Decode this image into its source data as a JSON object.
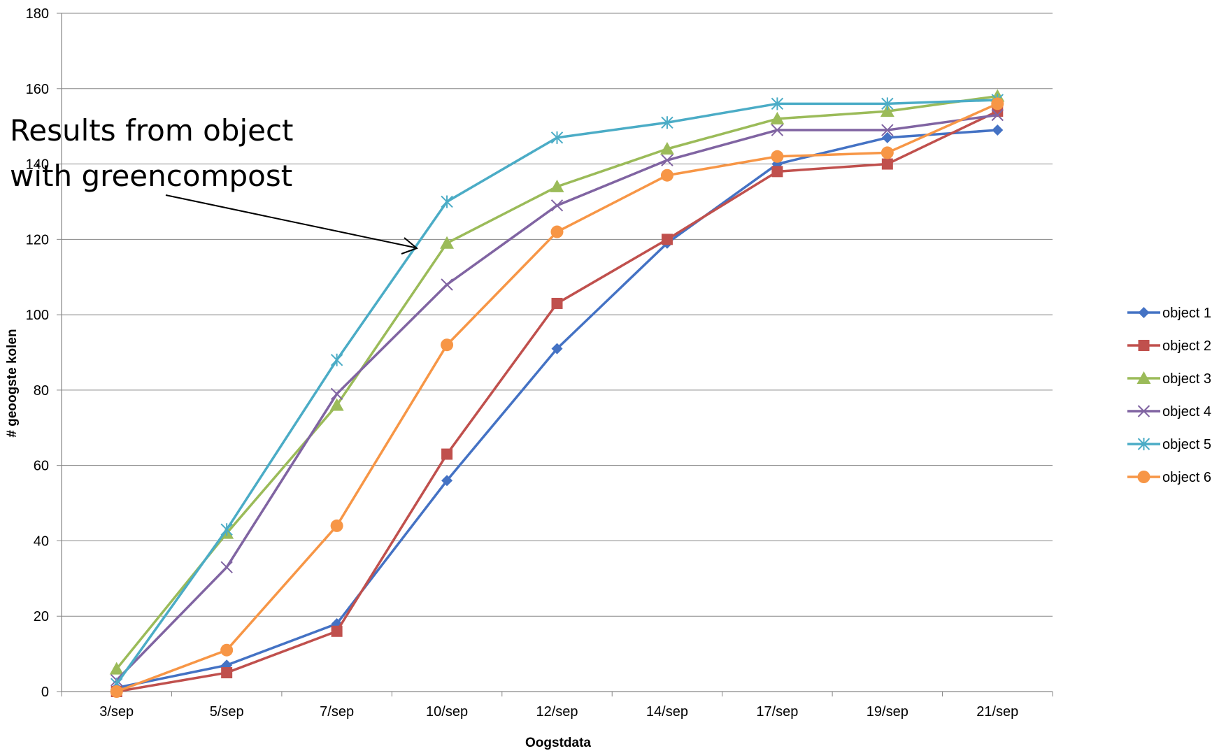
{
  "chart_data": {
    "type": "line",
    "xlabel": "Oogstdata",
    "ylabel": "# geoogste kolen",
    "categories": [
      "3/sep",
      "5/sep",
      "7/sep",
      "10/sep",
      "12/sep",
      "14/sep",
      "17/sep",
      "19/sep",
      "21/sep"
    ],
    "ylim": [
      0,
      180
    ],
    "yticks": [
      0,
      20,
      40,
      60,
      80,
      100,
      120,
      140,
      160,
      180
    ],
    "grid": true,
    "legend": "right",
    "series": [
      {
        "name": "object 1",
        "color": "#4472C4",
        "marker": "diamond",
        "values": [
          1,
          7,
          18,
          56,
          91,
          119,
          140,
          147,
          149
        ]
      },
      {
        "name": "object 2",
        "color": "#C0504D",
        "marker": "square",
        "values": [
          0,
          5,
          16,
          63,
          103,
          120,
          138,
          140,
          154
        ]
      },
      {
        "name": "object 3",
        "color": "#9BBB59",
        "marker": "triangle",
        "values": [
          6,
          42,
          76,
          119,
          134,
          144,
          152,
          154,
          158
        ]
      },
      {
        "name": "object 4",
        "color": "#8064A2",
        "marker": "x",
        "values": [
          3,
          33,
          79,
          108,
          129,
          141,
          149,
          149,
          153
        ]
      },
      {
        "name": "object 5",
        "color": "#4BACC6",
        "marker": "star",
        "values": [
          2,
          43,
          88,
          130,
          147,
          151,
          156,
          156,
          157
        ]
      },
      {
        "name": "object 6",
        "color": "#F79646",
        "marker": "circle",
        "values": [
          0,
          11,
          44,
          92,
          122,
          137,
          142,
          143,
          156
        ]
      }
    ],
    "annotation": {
      "lines": [
        "Results from object",
        "with greencompost"
      ]
    }
  }
}
